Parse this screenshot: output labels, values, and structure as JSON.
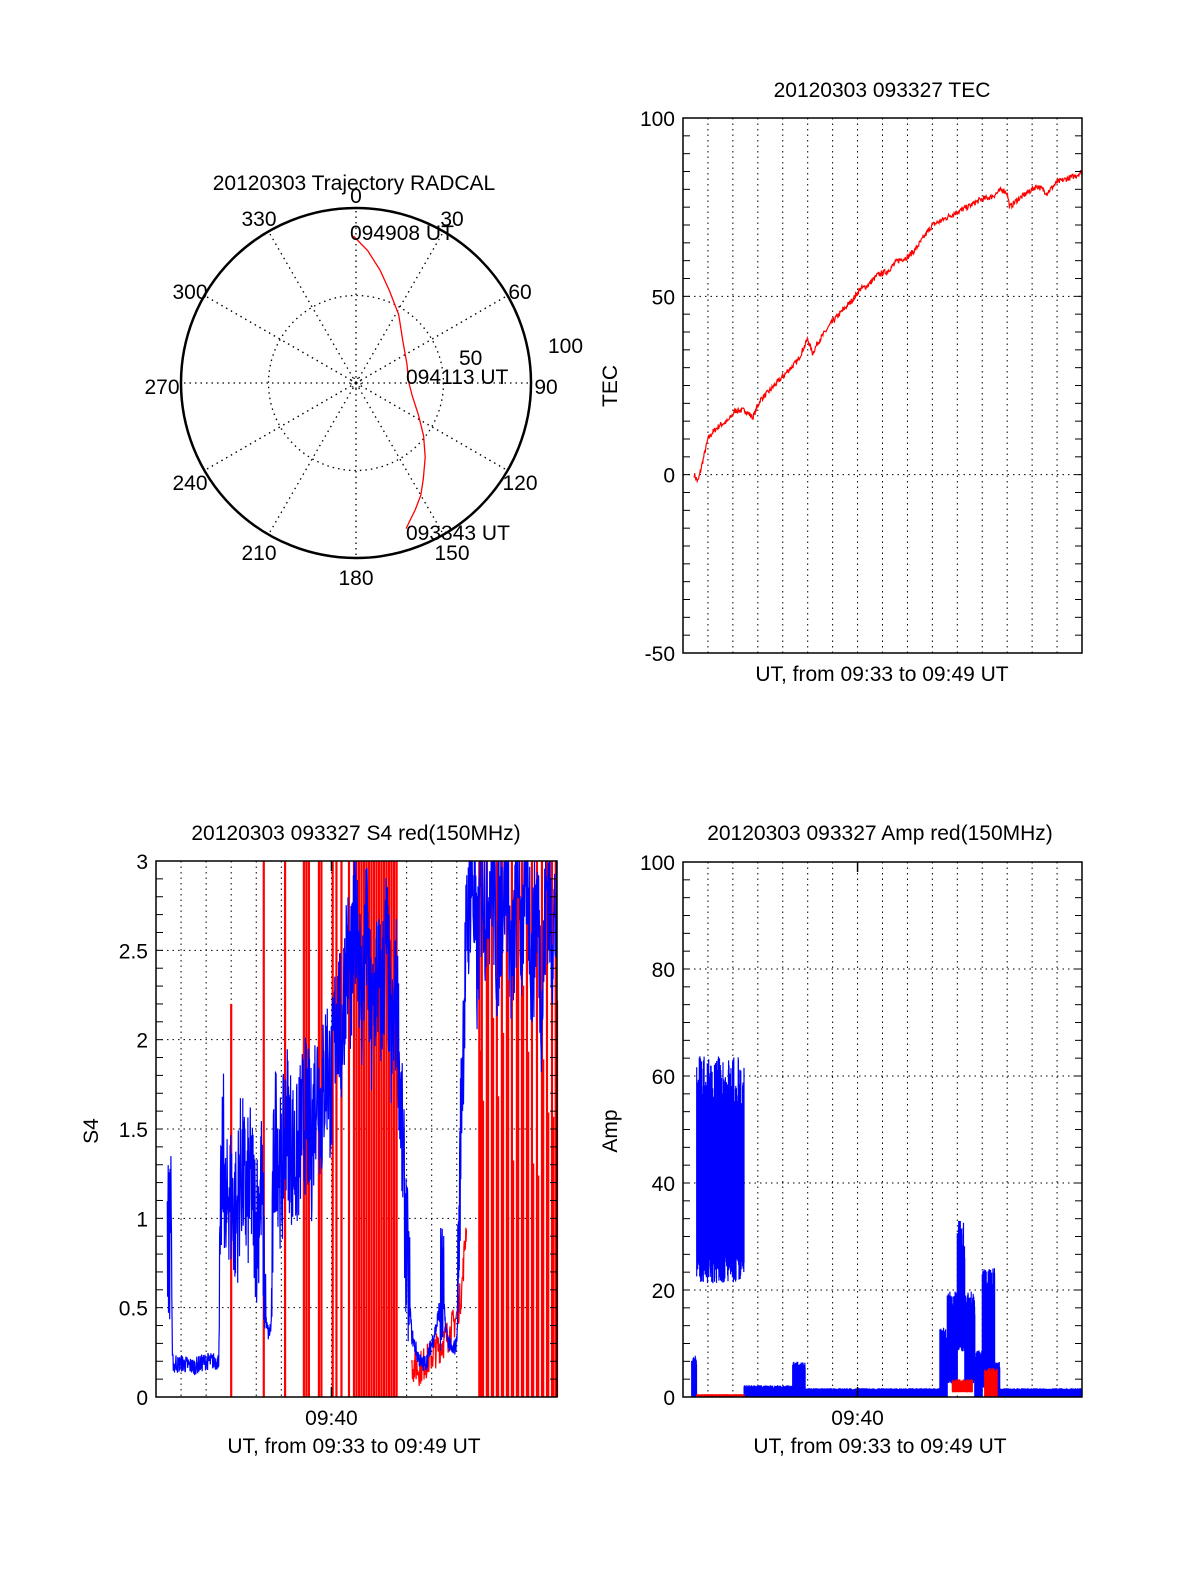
{
  "chart_data": [
    {
      "id": "polar",
      "type": "polar-line",
      "title": "20120303 Trajectory RADCAL",
      "angular_ticks": [
        "0",
        "30",
        "60",
        "90",
        "120",
        "150",
        "180",
        "210",
        "240",
        "270",
        "300",
        "330"
      ],
      "radial_ticks": [
        "50",
        "100"
      ],
      "rmax": 100,
      "grid": true,
      "series": [
        {
          "name": "trajectory",
          "color": "#ff0000",
          "points_az_r": [
            [
              359,
              84
            ],
            [
              5,
              76
            ],
            [
              12,
              66
            ],
            [
              20,
              56
            ],
            [
              32,
              46
            ],
            [
              48,
              36
            ],
            [
              70,
              31
            ],
            [
              88,
              30
            ],
            [
              103,
              33
            ],
            [
              117,
              40
            ],
            [
              128,
              49
            ],
            [
              137,
              58
            ],
            [
              145,
              67
            ],
            [
              150,
              74
            ],
            [
              155,
              80
            ],
            [
              159,
              85
            ],
            [
              161,
              88
            ]
          ]
        }
      ],
      "annotations": [
        {
          "text": "094908 UT",
          "az": 359,
          "r": 84
        },
        {
          "text": "094113 UT",
          "az": 88,
          "r": 30
        },
        {
          "text": "093343 UT",
          "az": 161,
          "r": 88
        }
      ]
    },
    {
      "id": "tec",
      "type": "line",
      "title": "20120303 093327 TEC",
      "xlabel": "UT, from 09:33 to 09:49 UT",
      "ylabel": "TEC",
      "xlim_min": [
        0,
        16
      ],
      "ylim": [
        -50,
        100
      ],
      "yticks": [
        "-50",
        "0",
        "50",
        "100"
      ],
      "xtick_labels": [],
      "grid": true,
      "series": [
        {
          "name": "TEC",
          "color": "#ff0000",
          "x_min": [
            0.45,
            0.6,
            0.8,
            1.0,
            1.2,
            1.5,
            1.8,
            2.1,
            2.5,
            2.8,
            3.1,
            3.4,
            3.8,
            4.2,
            4.6,
            5.0,
            5.2,
            5.4,
            5.7,
            6.0,
            6.4,
            6.8,
            7.1,
            7.4,
            7.8,
            8.2,
            8.6,
            9.0,
            9.3,
            9.6,
            9.9,
            10.0,
            10.3,
            10.8,
            11.4,
            11.9,
            12.4,
            12.8,
            13.0,
            13.1,
            13.4,
            13.8,
            14.2,
            14.6,
            15.0,
            15.4,
            15.8,
            16.0
          ],
          "values": [
            0,
            -2,
            4,
            10,
            12,
            14,
            15,
            18,
            18,
            16,
            21,
            23,
            26,
            29,
            32,
            38,
            34,
            37,
            40,
            43,
            46,
            49,
            52,
            53,
            56,
            57,
            60,
            61,
            63,
            66,
            69,
            70,
            71,
            73,
            75,
            77,
            78,
            80,
            79,
            75,
            77,
            79,
            81,
            79,
            82,
            83,
            84,
            85
          ]
        }
      ]
    },
    {
      "id": "s4",
      "type": "line",
      "title": "20120303 093327 S4 red(150MHz)",
      "xlabel": "UT, from 09:33 to 09:49 UT",
      "ylabel": "S4",
      "xlim_min": [
        0,
        16
      ],
      "ylim": [
        0,
        3
      ],
      "yticks": [
        "0",
        "0.5",
        "1",
        "1.5",
        "2",
        "2.5",
        "3"
      ],
      "xtick_labels": [
        {
          "min": 7,
          "label": "09:40"
        }
      ],
      "grid": true,
      "series": [
        {
          "name": "blue",
          "color": "#0000ff",
          "x_min": [
            0.45,
            0.55,
            0.6,
            0.65,
            0.7,
            0.75,
            0.8,
            0.85,
            1.0,
            1.5,
            2.0,
            2.5,
            2.6,
            2.7,
            2.8,
            2.9,
            3.0,
            3.2,
            3.4,
            3.6,
            3.8,
            4.0,
            4.2,
            4.4,
            4.5,
            4.6,
            4.7,
            4.8,
            5.0,
            5.2,
            5.4,
            5.6,
            5.8,
            6.0,
            6.2,
            6.4,
            6.6,
            6.8,
            7.0,
            7.2,
            7.4,
            7.6,
            7.8,
            8.0,
            8.2,
            8.4,
            8.6,
            8.8,
            9.0,
            9.2,
            9.4,
            9.6,
            9.8,
            10.0,
            10.2,
            10.4,
            10.6,
            10.8,
            11.0,
            11.2,
            11.4,
            11.6,
            11.8,
            12.0,
            12.1,
            12.2,
            12.4,
            12.6,
            12.8,
            13.0,
            13.2,
            13.4,
            13.6,
            13.8,
            14.0,
            14.2,
            14.4,
            14.6,
            14.8,
            15.0,
            15.2,
            15.4,
            15.6,
            15.8,
            16.0
          ],
          "values": [
            0.95,
            0.85,
            1.3,
            0.2,
            0.19,
            0.17,
            0.2,
            0.18,
            0.19,
            0.17,
            0.2,
            0.2,
            1.1,
            1.4,
            0.9,
            1.2,
            1.1,
            1.0,
            1.3,
            1.1,
            1.2,
            0.95,
            1.2,
            0.4,
            0.35,
            0.4,
            1.3,
            1.5,
            1.2,
            1.6,
            1.4,
            1.3,
            1.5,
            1.6,
            1.4,
            1.8,
            1.6,
            1.9,
            1.7,
            2.2,
            2.0,
            2.5,
            2.3,
            2.8,
            2.2,
            2.6,
            2.0,
            2.4,
            2.2,
            2.6,
            1.9,
            2.3,
            1.5,
            0.8,
            0.35,
            0.25,
            0.18,
            0.2,
            0.3,
            0.4,
            0.6,
            0.35,
            0.25,
            0.3,
            1.0,
            1.8,
            2.6,
            3.0,
            2.4,
            2.9,
            2.7,
            3.0,
            2.5,
            2.8,
            3.0,
            2.3,
            2.9,
            2.6,
            3.0,
            2.4,
            2.8,
            2.2,
            2.9,
            2.6,
            2.7
          ]
        },
        {
          "name": "red",
          "color": "#ff0000",
          "spikes_min": [
            3.0,
            4.3,
            5.15,
            5.9,
            6.0,
            6.1,
            6.5,
            6.6,
            7.05,
            7.2,
            7.4,
            7.7,
            7.9,
            8.0,
            8.1,
            8.2,
            8.3,
            8.4,
            8.5,
            8.6,
            8.7,
            8.8,
            8.9,
            9.0,
            9.1,
            9.2,
            9.3,
            9.4,
            9.5,
            9.6,
            12.9,
            13.0,
            13.2,
            13.4,
            13.6,
            13.8,
            14.0,
            14.2,
            14.4,
            14.6,
            14.8,
            15.0,
            15.2,
            15.4,
            15.6,
            15.8,
            15.95
          ],
          "spike_top": [
            2.2,
            3,
            3,
            3,
            3,
            3,
            3,
            3,
            3,
            3,
            3,
            3,
            3,
            3,
            3,
            3,
            3,
            3,
            3,
            3,
            3,
            3,
            3,
            3,
            3,
            3,
            3,
            3,
            3,
            3,
            3,
            3,
            3,
            3,
            3,
            3,
            3,
            3,
            3,
            3,
            3,
            3,
            3,
            3,
            3,
            3,
            3
          ],
          "low_x_min": [
            10.2,
            10.5,
            10.8,
            11.1,
            11.4,
            11.7,
            12.0,
            12.2,
            12.4
          ],
          "low_values": [
            0.18,
            0.16,
            0.2,
            0.25,
            0.3,
            0.35,
            0.45,
            0.6,
            1.0
          ]
        }
      ]
    },
    {
      "id": "amp",
      "type": "line",
      "title": "20120303 093327 Amp red(150MHz)",
      "xlabel": "UT, from 09:33 to 09:49 UT",
      "ylabel": "Amp",
      "xlim_min": [
        0,
        16
      ],
      "ylim": [
        0,
        100
      ],
      "yticks": [
        "0",
        "20",
        "40",
        "60",
        "80",
        "100"
      ],
      "xtick_labels": [
        {
          "min": 7,
          "label": "09:40"
        }
      ],
      "grid": true,
      "series": [
        {
          "name": "blue",
          "color": "#0000ff",
          "bands": [
            {
              "x0": 0.35,
              "x1": 0.55,
              "lo": 0,
              "hi": 7
            },
            {
              "x0": 0.55,
              "x1": 2.45,
              "lo": 25,
              "hi": 58
            },
            {
              "x0": 2.45,
              "x1": 4.4,
              "lo": 0,
              "hi": 2
            },
            {
              "x0": 4.4,
              "x1": 4.9,
              "lo": 0,
              "hi": 6
            },
            {
              "x0": 4.9,
              "x1": 10.3,
              "lo": 0,
              "hi": 1.5
            },
            {
              "x0": 10.3,
              "x1": 10.6,
              "lo": 0,
              "hi": 12
            },
            {
              "x0": 10.6,
              "x1": 11.0,
              "lo": 3,
              "hi": 18
            },
            {
              "x0": 11.0,
              "x1": 11.3,
              "lo": 10,
              "hi": 30
            },
            {
              "x0": 11.3,
              "x1": 11.7,
              "lo": 3,
              "hi": 18
            },
            {
              "x0": 11.7,
              "x1": 12.0,
              "lo": 0,
              "hi": 8
            },
            {
              "x0": 12.0,
              "x1": 12.5,
              "lo": 2,
              "hi": 22
            },
            {
              "x0": 12.5,
              "x1": 12.7,
              "lo": 0,
              "hi": 6
            },
            {
              "x0": 12.7,
              "x1": 16.0,
              "lo": 0,
              "hi": 1.5
            }
          ]
        },
        {
          "name": "red",
          "color": "#ff0000",
          "bands": [
            {
              "x0": 0.55,
              "x1": 2.45,
              "lo": 0,
              "hi": 0.5
            },
            {
              "x0": 10.8,
              "x1": 11.6,
              "lo": 1,
              "hi": 3
            },
            {
              "x0": 12.1,
              "x1": 12.6,
              "lo": 0,
              "hi": 5
            }
          ]
        }
      ]
    }
  ]
}
